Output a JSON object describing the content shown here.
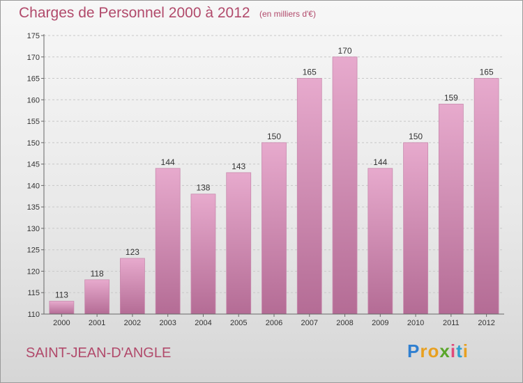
{
  "header": {
    "title": "Charges de Personnel 2000 à 2012",
    "unit": "(en milliers d'€)"
  },
  "footer": {
    "city": "SAINT-JEAN-D'ANGLE",
    "logo": {
      "letters": [
        "P",
        "r",
        "o",
        "x",
        "i",
        "t",
        "i"
      ],
      "colors": [
        "#2f7fd0",
        "#e8a020",
        "#e8a020",
        "#5aa62a",
        "#e04a7a",
        "#2fa0d0",
        "#e8a020"
      ]
    }
  },
  "chart_data": {
    "type": "bar",
    "title": "Charges de Personnel 2000 à 2012",
    "subtitle": "(en milliers d'€)",
    "categories": [
      "2000",
      "2001",
      "2002",
      "2003",
      "2004",
      "2005",
      "2006",
      "2007",
      "2008",
      "2009",
      "2010",
      "2011",
      "2012"
    ],
    "values": [
      113,
      118,
      123,
      144,
      138,
      143,
      150,
      165,
      170,
      144,
      150,
      159,
      165
    ],
    "ylim": [
      110,
      175
    ],
    "yticks": [
      110,
      115,
      120,
      125,
      130,
      135,
      140,
      145,
      150,
      155,
      160,
      165,
      170,
      175
    ],
    "grid": true,
    "data_labels": true,
    "colors": {
      "bar_light": "#e7aacd",
      "bar_dark": "#b46c95",
      "bar_edge": "#c98aae",
      "grid": "#c8c8c8",
      "axis": "#666666"
    }
  }
}
